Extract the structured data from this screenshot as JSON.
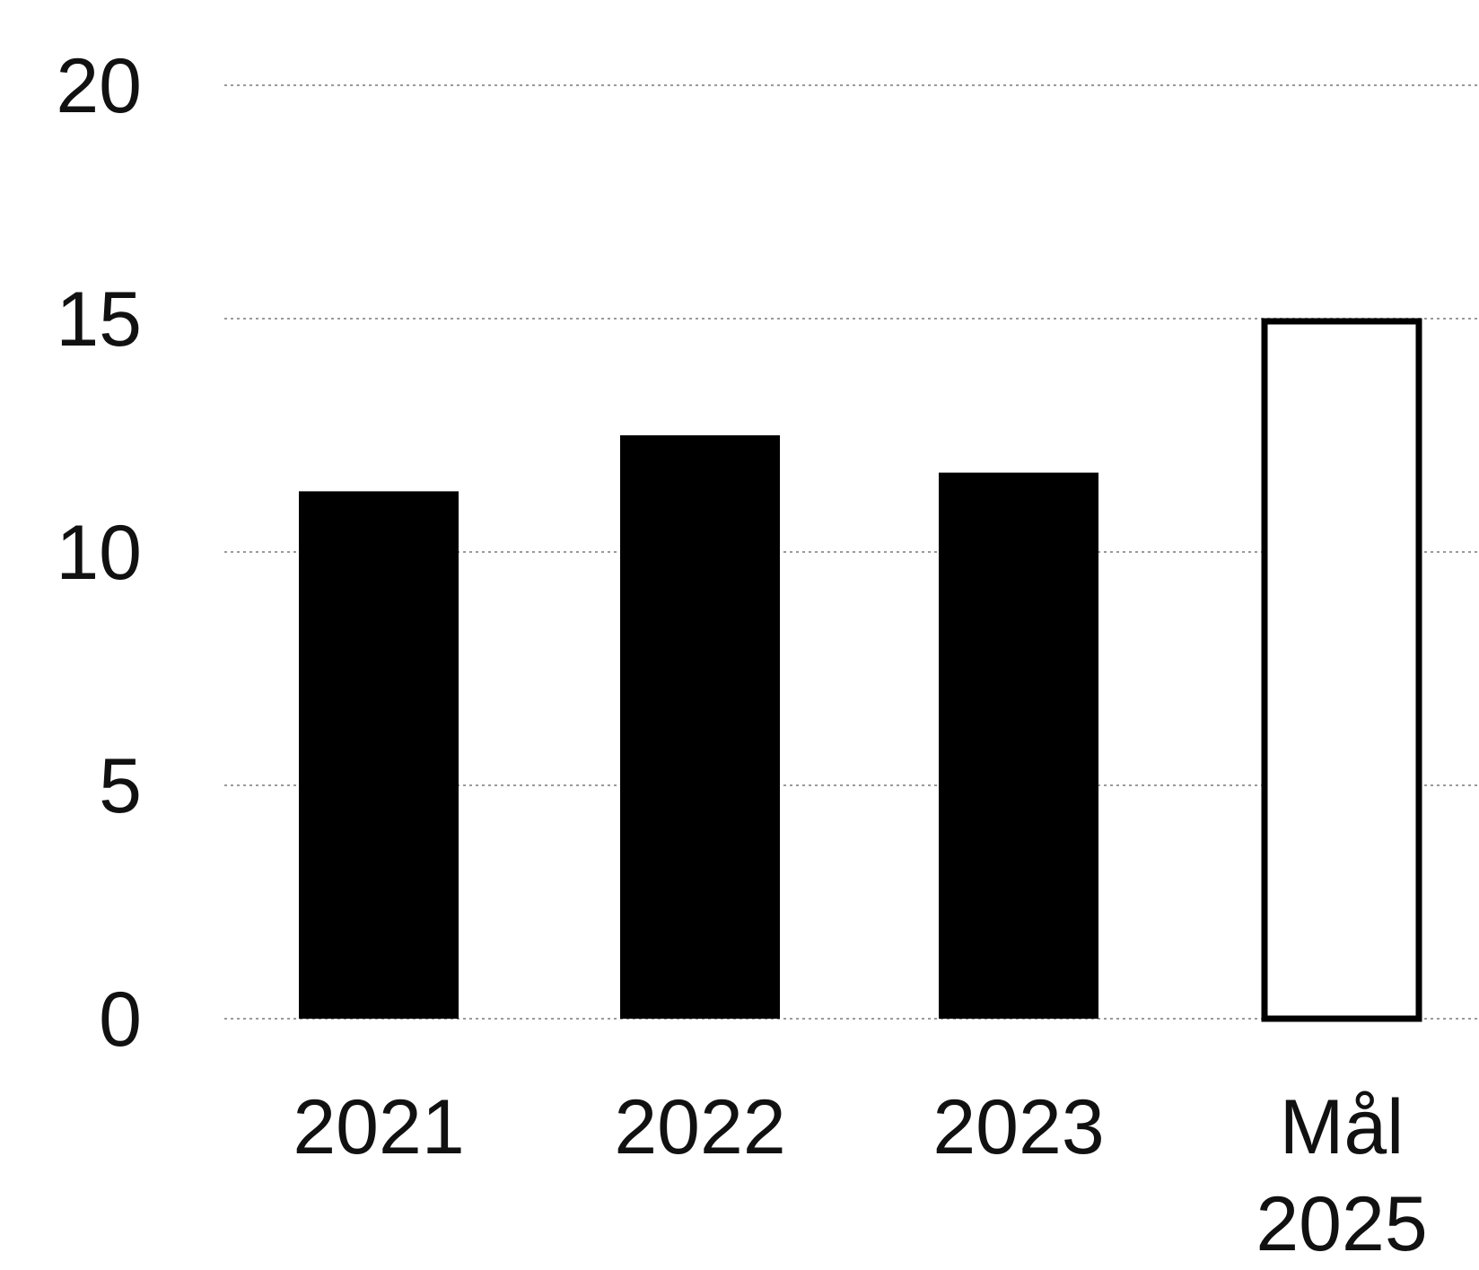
{
  "chart_data": {
    "type": "bar",
    "title": "",
    "xlabel": "",
    "ylabel": "",
    "categories": [
      "2021",
      "2022",
      "2023",
      "Mål 2025"
    ],
    "category_lines": [
      [
        "2021"
      ],
      [
        "2022"
      ],
      [
        "2023"
      ],
      [
        "Mål",
        "2025"
      ]
    ],
    "values": [
      11.3,
      12.5,
      11.7,
      15.0
    ],
    "bar_styles": [
      "filled",
      "filled",
      "filled",
      "outline"
    ],
    "ylim": [
      0,
      20
    ],
    "yticks": [
      0,
      5,
      10,
      15,
      20
    ],
    "grid": true,
    "legend": "none",
    "colors": {
      "bar_fill": "#000000",
      "outline_fill": "#ffffff",
      "outline_stroke": "#000000",
      "gridline": "#9a9a9a",
      "text": "#111111"
    }
  }
}
